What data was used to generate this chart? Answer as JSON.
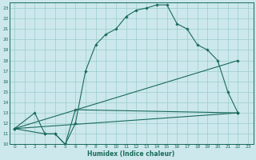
{
  "title": "",
  "xlabel": "Humidex (Indice chaleur)",
  "bg_color": "#cce8ec",
  "line_color": "#1a6b5a",
  "grid_color": "#99cccc",
  "xlim": [
    -0.5,
    23.5
  ],
  "ylim": [
    10,
    23.5
  ],
  "xticks": [
    0,
    1,
    2,
    3,
    4,
    5,
    6,
    7,
    8,
    9,
    10,
    11,
    12,
    13,
    14,
    15,
    16,
    17,
    18,
    19,
    20,
    21,
    22,
    23
  ],
  "yticks": [
    10,
    11,
    12,
    13,
    14,
    15,
    16,
    17,
    18,
    19,
    20,
    21,
    22,
    23
  ],
  "line1_x": [
    0,
    2,
    3,
    4,
    5,
    6,
    7,
    8,
    9,
    10,
    11,
    12,
    13,
    14,
    15,
    16,
    17,
    18,
    19,
    20,
    21,
    22
  ],
  "line1_y": [
    11.5,
    13,
    11,
    11,
    10,
    12,
    17,
    19.5,
    20.5,
    21,
    22.2,
    22.8,
    23.0,
    23.3,
    23.3,
    21.5,
    21.0,
    19.5,
    19.0,
    18.0,
    15.0,
    13.0
  ],
  "line2_x": [
    0,
    3,
    4,
    5,
    6,
    22
  ],
  "line2_y": [
    11.5,
    11,
    11,
    10,
    13.3,
    13.0
  ],
  "line3_x": [
    0,
    22
  ],
  "line3_y": [
    11.5,
    18.0
  ],
  "line4_x": [
    0,
    22
  ],
  "line4_y": [
    11.5,
    13.0
  ]
}
